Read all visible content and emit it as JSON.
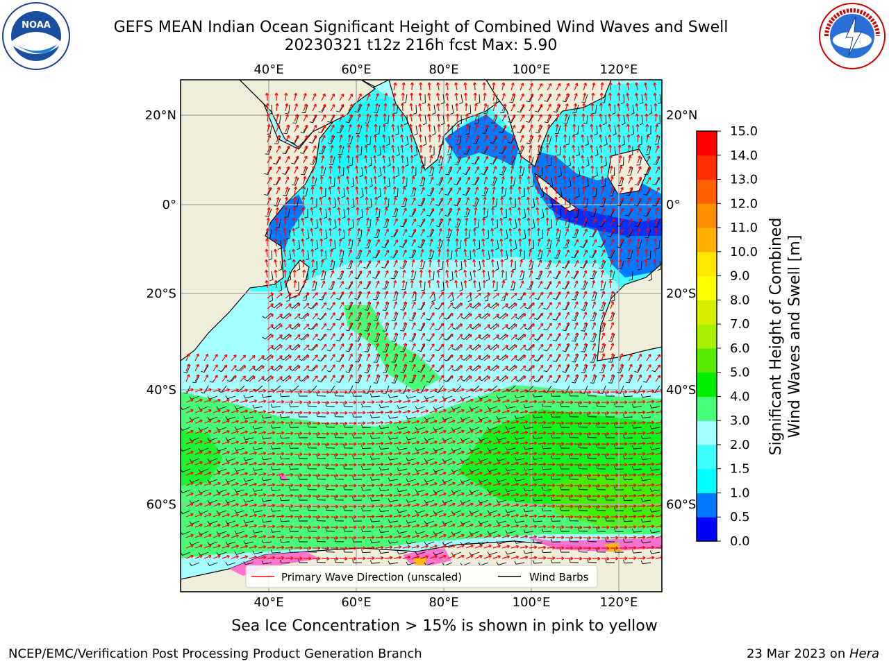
{
  "title": {
    "line1": "GEFS MEAN Indian Ocean Significant Height of Combined Wind Waves and Swell",
    "line2": "20230321 t12z 216h fcst   Max: 5.90"
  },
  "logos": {
    "left": {
      "icon": "noaa-logo",
      "text": "NOAA"
    },
    "right": {
      "icon": "nws-logo",
      "text": "NATIONAL WEATHER SERVICE"
    }
  },
  "map": {
    "lon_labels": [
      "40°E",
      "60°E",
      "80°E",
      "100°E",
      "120°E"
    ],
    "lat_labels": [
      "20°N",
      "0°",
      "20°S",
      "40°S",
      "60°S"
    ],
    "legend": {
      "wave_direction": "Primary Wave Direction (unscaled)",
      "wind_barbs": "Wind Barbs"
    },
    "colors": {
      "land": "#efeedb",
      "wave_arrow": "#ff0000",
      "wind_barb": "#000000",
      "sea_ice": "#ff66cc"
    }
  },
  "colorbar": {
    "label_line1": "Significant Height of Combined",
    "label_line2": "Wind Waves and Swell [m]",
    "ticks": [
      "0.0",
      "0.5",
      "1.0",
      "1.5",
      "2.0",
      "3.0",
      "4.0",
      "5.0",
      "6.0",
      "7.0",
      "8.0",
      "9.0",
      "10.0",
      "11.0",
      "12.0",
      "13.0",
      "14.0",
      "15.0"
    ],
    "colors": [
      "#0000ff",
      "#0078ff",
      "#00ffff",
      "#40ffff",
      "#a6ffff",
      "#48ff7a",
      "#00ee00",
      "#58ea00",
      "#a8ee00",
      "#d4f000",
      "#ffff00",
      "#ffe800",
      "#ffb000",
      "#ff9000",
      "#ff6000",
      "#ff3000",
      "#ff0000"
    ]
  },
  "caption": "Sea Ice Concentration > 15% is shown in pink to yellow",
  "footer": {
    "left": "NCEP/EMC/Verification Post Processing Product Generation Branch",
    "right_prefix": "23 Mar 2023 on ",
    "right_host": "Hera"
  }
}
